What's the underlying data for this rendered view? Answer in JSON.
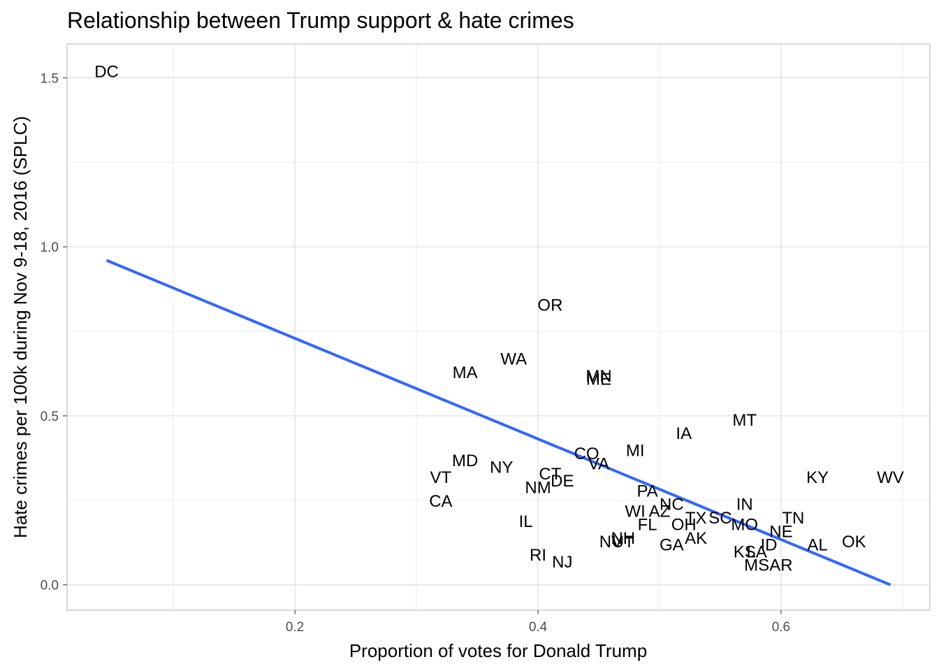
{
  "chart_data": {
    "type": "scatter",
    "title": "Relationship between Trump support & hate crimes",
    "xlabel": "Proportion of votes for Donald Trump",
    "ylabel": "Hate crimes per 100k during Nov 9-18, 2016 (SPLC)",
    "xlim": [
      0.0125,
      0.7225
    ],
    "ylim": [
      -0.075,
      1.6
    ],
    "x_ticks": [
      0.2,
      0.4,
      0.6
    ],
    "x_tick_labels": [
      "0.2",
      "0.4",
      "0.6"
    ],
    "y_ticks": [
      0.0,
      0.5,
      1.0,
      1.5
    ],
    "y_tick_labels": [
      "0.0",
      "0.5",
      "1.0",
      "1.5"
    ],
    "grid": true,
    "point_style": "text labels",
    "points": [
      {
        "label": "DC",
        "x": 0.045,
        "y": 1.52
      },
      {
        "label": "OR",
        "x": 0.41,
        "y": 0.83
      },
      {
        "label": "WA",
        "x": 0.38,
        "y": 0.67
      },
      {
        "label": "MA",
        "x": 0.34,
        "y": 0.63
      },
      {
        "label": "MN",
        "x": 0.45,
        "y": 0.62
      },
      {
        "label": "ME",
        "x": 0.45,
        "y": 0.61
      },
      {
        "label": "MT",
        "x": 0.57,
        "y": 0.49
      },
      {
        "label": "IA",
        "x": 0.52,
        "y": 0.45
      },
      {
        "label": "MI",
        "x": 0.48,
        "y": 0.4
      },
      {
        "label": "CO",
        "x": 0.44,
        "y": 0.39
      },
      {
        "label": "VA",
        "x": 0.45,
        "y": 0.36
      },
      {
        "label": "MD",
        "x": 0.34,
        "y": 0.37
      },
      {
        "label": "NY",
        "x": 0.37,
        "y": 0.35
      },
      {
        "label": "CT",
        "x": 0.41,
        "y": 0.33
      },
      {
        "label": "DE",
        "x": 0.42,
        "y": 0.31
      },
      {
        "label": "VT",
        "x": 0.32,
        "y": 0.32
      },
      {
        "label": "NM",
        "x": 0.4,
        "y": 0.29
      },
      {
        "label": "KY",
        "x": 0.63,
        "y": 0.32
      },
      {
        "label": "WV",
        "x": 0.69,
        "y": 0.32
      },
      {
        "label": "PA",
        "x": 0.49,
        "y": 0.28
      },
      {
        "label": "CA",
        "x": 0.32,
        "y": 0.25
      },
      {
        "label": "NC",
        "x": 0.51,
        "y": 0.24
      },
      {
        "label": "IN",
        "x": 0.57,
        "y": 0.24
      },
      {
        "label": "WI",
        "x": 0.48,
        "y": 0.22
      },
      {
        "label": "AZ",
        "x": 0.5,
        "y": 0.22
      },
      {
        "label": "TX",
        "x": 0.53,
        "y": 0.2
      },
      {
        "label": "SC",
        "x": 0.55,
        "y": 0.2
      },
      {
        "label": "TN",
        "x": 0.61,
        "y": 0.2
      },
      {
        "label": "IL",
        "x": 0.39,
        "y": 0.19
      },
      {
        "label": "FL",
        "x": 0.49,
        "y": 0.18
      },
      {
        "label": "OH",
        "x": 0.52,
        "y": 0.18
      },
      {
        "label": "MO",
        "x": 0.57,
        "y": 0.18
      },
      {
        "label": "NE",
        "x": 0.6,
        "y": 0.16
      },
      {
        "label": "NH",
        "x": 0.47,
        "y": 0.14
      },
      {
        "label": "NV",
        "x": 0.46,
        "y": 0.13
      },
      {
        "label": "UT",
        "x": 0.47,
        "y": 0.13
      },
      {
        "label": "AK",
        "x": 0.53,
        "y": 0.14
      },
      {
        "label": "ID",
        "x": 0.59,
        "y": 0.12
      },
      {
        "label": "AL",
        "x": 0.63,
        "y": 0.12
      },
      {
        "label": "OK",
        "x": 0.66,
        "y": 0.13
      },
      {
        "label": "GA",
        "x": 0.51,
        "y": 0.12
      },
      {
        "label": "KS",
        "x": 0.57,
        "y": 0.1
      },
      {
        "label": "LA",
        "x": 0.58,
        "y": 0.1
      },
      {
        "label": "RI",
        "x": 0.4,
        "y": 0.09
      },
      {
        "label": "NJ",
        "x": 0.42,
        "y": 0.07
      },
      {
        "label": "MS",
        "x": 0.58,
        "y": 0.06
      },
      {
        "label": "AR",
        "x": 0.6,
        "y": 0.06
      }
    ],
    "trend_line": {
      "type": "linear fit",
      "color": "#3366FF",
      "x": [
        0.045,
        0.69
      ],
      "y": [
        0.96,
        0.0
      ]
    }
  }
}
